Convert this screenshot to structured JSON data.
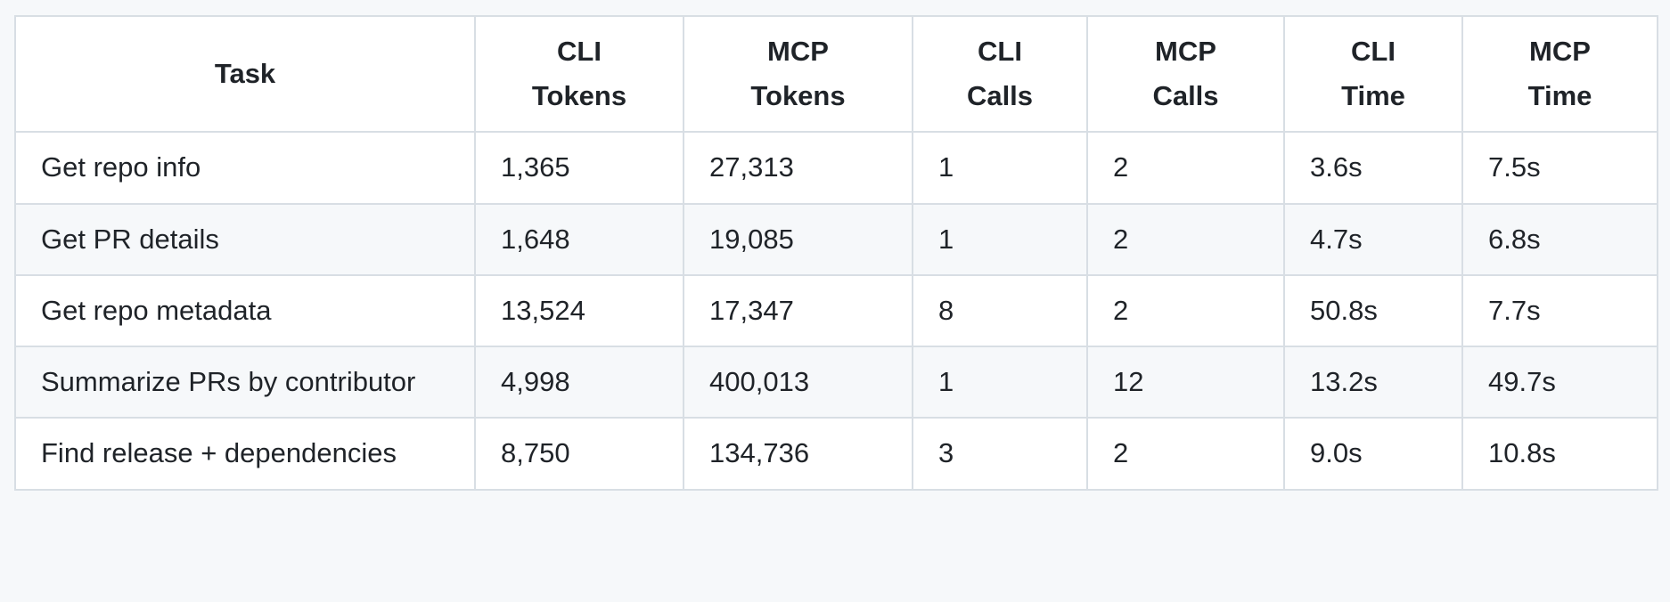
{
  "colors": {
    "page_bg": "#f6f8fa",
    "cell_bg": "#ffffff",
    "stripe": "#f6f8fa",
    "border": "#d8dee4",
    "text": "#1f2328"
  },
  "table": {
    "headers": [
      {
        "lines": [
          "Task"
        ]
      },
      {
        "lines": [
          "CLI",
          "Tokens"
        ]
      },
      {
        "lines": [
          "MCP",
          "Tokens"
        ]
      },
      {
        "lines": [
          "CLI",
          "Calls"
        ]
      },
      {
        "lines": [
          "MCP",
          "Calls"
        ]
      },
      {
        "lines": [
          "CLI",
          "Time"
        ]
      },
      {
        "lines": [
          "MCP",
          "Time"
        ]
      }
    ],
    "rows": [
      {
        "cells": [
          "Get repo info",
          "1,365",
          "27,313",
          "1",
          "2",
          "3.6s",
          "7.5s"
        ]
      },
      {
        "cells": [
          "Get PR details",
          "1,648",
          "19,085",
          "1",
          "2",
          "4.7s",
          "6.8s"
        ]
      },
      {
        "cells": [
          "Get repo metadata",
          "13,524",
          "17,347",
          "8",
          "2",
          "50.8s",
          "7.7s"
        ]
      },
      {
        "cells": [
          "Summarize PRs by contributor",
          "4,998",
          "400,013",
          "1",
          "12",
          "13.2s",
          "49.7s"
        ]
      },
      {
        "cells": [
          "Find release + dependencies",
          "8,750",
          "134,736",
          "3",
          "2",
          "9.0s",
          "10.8s"
        ]
      }
    ]
  },
  "chart_data": {
    "type": "table",
    "title": "",
    "columns": [
      "Task",
      "CLI Tokens",
      "MCP Tokens",
      "CLI Calls",
      "MCP Calls",
      "CLI Time",
      "MCP Time"
    ],
    "rows": [
      [
        "Get repo info",
        1365,
        27313,
        1,
        2,
        "3.6s",
        "7.5s"
      ],
      [
        "Get PR details",
        1648,
        19085,
        1,
        2,
        "4.7s",
        "6.8s"
      ],
      [
        "Get repo metadata",
        13524,
        17347,
        8,
        2,
        "50.8s",
        "7.7s"
      ],
      [
        "Summarize PRs by contributor",
        4998,
        400013,
        1,
        12,
        "13.2s",
        "49.7s"
      ],
      [
        "Find release + dependencies",
        8750,
        134736,
        3,
        2,
        "9.0s",
        "10.8s"
      ]
    ]
  }
}
